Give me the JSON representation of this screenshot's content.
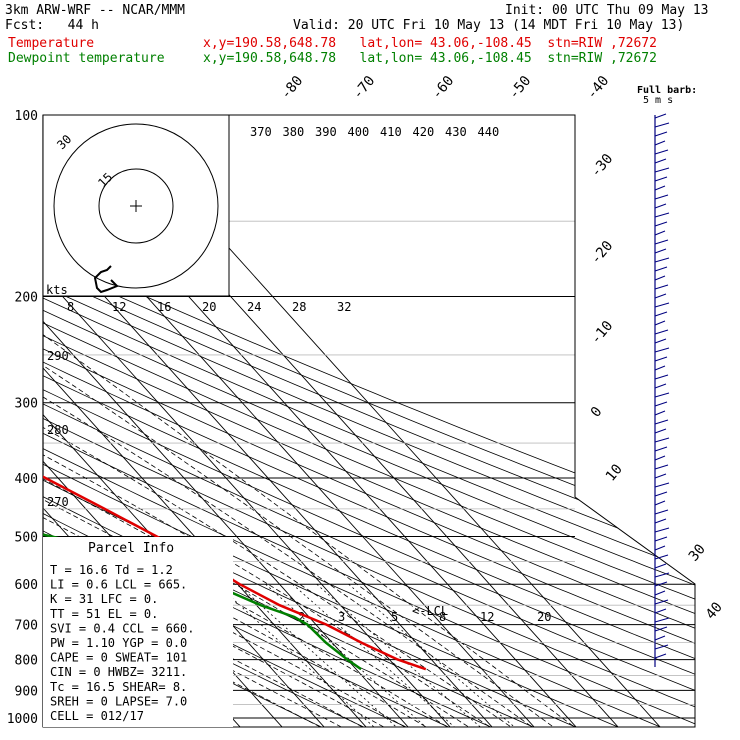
{
  "header": {
    "model": "3km ARW-WRF -- NCAR/MMM",
    "init": "Init: 00 UTC Thu 09 May 13",
    "fcst": "Fcst:   44 h",
    "valid": "Valid: 20 UTC Fri 10 May 13 (14 MDT Fri 10 May 13)",
    "temp_label": "Temperature",
    "dew_label": "Dewpoint temperature",
    "temp_loc": "x,y=190.58,648.78   lat,lon= 43.06,-108.45  stn=RIW ,72672",
    "dew_loc": "x,y=190.58,648.78   lat,lon= 43.06,-108.45  stn=RIW ,72672"
  },
  "colors": {
    "temperature": "#e00000",
    "dewpoint": "#008000",
    "barbs": "#000080"
  },
  "chart_data": {
    "type": "line",
    "pressure_levels": [
      "100",
      "200",
      "300",
      "400",
      "500",
      "600",
      "700",
      "800",
      "900",
      "1000"
    ],
    "pressure_values": [
      100,
      200,
      300,
      400,
      500,
      600,
      700,
      800,
      900,
      1000
    ],
    "top_temp_labels": [
      "-80",
      "-70",
      "-60",
      "-50",
      "-40"
    ],
    "right_temp_labels": [
      "-30",
      "-20",
      "-10",
      "0",
      "10"
    ],
    "lower_right_labels": [
      "30",
      "40"
    ],
    "theta_e_labels": [
      "370",
      "380",
      "390",
      "400",
      "410",
      "420",
      "430",
      "440"
    ],
    "theta_labels": [
      "290",
      "280",
      "270"
    ],
    "mixing_ratio_labels": [
      "2",
      "3",
      "5",
      "8",
      "12",
      "20"
    ],
    "hodo_axis_labels": [
      "8",
      "12",
      "16",
      "20",
      "24",
      "28",
      "32"
    ],
    "hodo_units": "kts",
    "hodo_ring_labels": [
      "30",
      "15"
    ],
    "lcl_label": "LCL",
    "barb_key": "Full barb:",
    "barb_key_units": "5 m s",
    "temperature_profile": [
      {
        "p": 100,
        "t": -54.5
      },
      {
        "p": 125,
        "t": -56.5
      },
      {
        "p": 150,
        "t": -60.5
      },
      {
        "p": 175,
        "t": -63.8
      },
      {
        "p": 200,
        "t": -64
      },
      {
        "p": 250,
        "t": -60.5
      },
      {
        "p": 300,
        "t": -51.5
      },
      {
        "p": 350,
        "t": -41.5
      },
      {
        "p": 400,
        "t": -33
      },
      {
        "p": 450,
        "t": -25.5
      },
      {
        "p": 500,
        "t": -19
      },
      {
        "p": 550,
        "t": -13.5
      },
      {
        "p": 600,
        "t": -9.5
      },
      {
        "p": 650,
        "t": -4.5
      },
      {
        "p": 700,
        "t": 2.5
      },
      {
        "p": 750,
        "t": 7
      },
      {
        "p": 800,
        "t": 12
      },
      {
        "p": 830,
        "t": 16.6
      }
    ],
    "dewpoint_profile": [
      {
        "p": 100,
        "t": -110
      },
      {
        "p": 150,
        "t": -111
      },
      {
        "p": 175,
        "t": -112
      },
      {
        "p": 200,
        "t": -115
      },
      {
        "p": 250,
        "t": -109
      },
      {
        "p": 300,
        "t": -100
      },
      {
        "p": 350,
        "t": -90
      },
      {
        "p": 400,
        "t": -84
      },
      {
        "p": 450,
        "t": -69
      },
      {
        "p": 500,
        "t": -44
      },
      {
        "p": 550,
        "t": -26
      },
      {
        "p": 600,
        "t": -16
      },
      {
        "p": 650,
        "t": -9
      },
      {
        "p": 680,
        "t": -3.5
      },
      {
        "p": 700,
        "t": -2
      },
      {
        "p": 750,
        "t": -1.5
      },
      {
        "p": 800,
        "t": 0
      },
      {
        "p": 830,
        "t": 1.2
      }
    ],
    "hodograph": [
      [
        0,
        -28
      ],
      [
        -4,
        -24
      ],
      [
        -10,
        -22
      ],
      [
        -16,
        -16
      ],
      [
        -14,
        -6
      ],
      [
        -10,
        -2
      ],
      [
        -4,
        -4
      ],
      [
        6,
        -8
      ],
      [
        0,
        -14
      ]
    ]
  },
  "parcel": {
    "title": "Parcel Info",
    "rows": [
      "T  =    16.6  Td =   1.2",
      "LI =     0.6  LCL =  665.",
      "K  =      31  LFC =    0.",
      "TT =      51  EL  =    0.",
      "SVI =    0.4  CCL =  660.",
      "PW =    1.10  YGP =   0.0",
      "CAPE =     0  SWEAT=  101",
      "CIN =      0  HWBZ= 3211.",
      "Tc =    16.5  SHEAR=   8.",
      "SREH =     0  LAPSE=  7.0",
      "CELL = 012/17"
    ]
  }
}
